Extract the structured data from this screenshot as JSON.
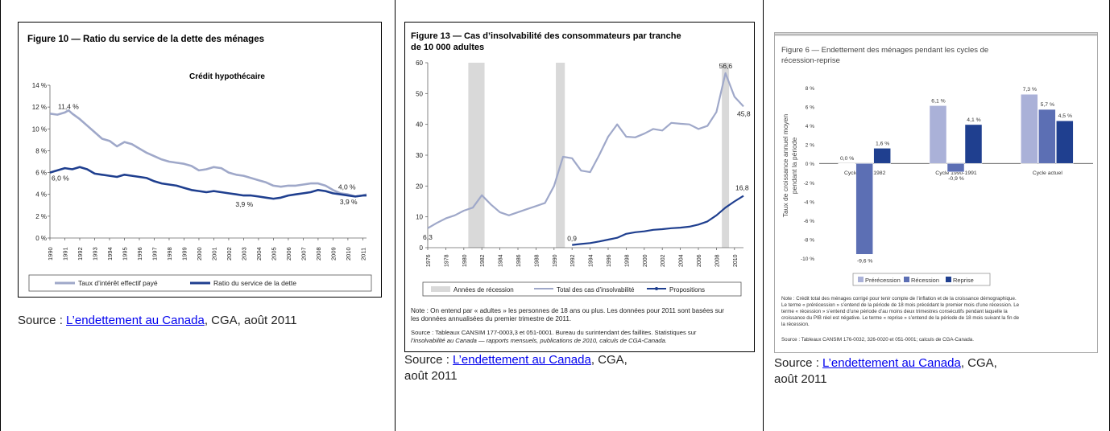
{
  "source": {
    "prefix": "Source : ",
    "link_text": "L’endettement au Canada",
    "suffix_wide": ", CGA, août 2011",
    "suffix_line1": ", CGA,",
    "suffix_line2": "août 2011"
  },
  "chart_data": [
    {
      "type": "line",
      "title": "Figure 10 — Ratio du service de la dette des ménages",
      "subtitle": "Crédit hypothécaire",
      "xlim": [
        1990,
        2011.25
      ],
      "ylim": [
        0,
        14
      ],
      "y_ticks": [
        "0 %",
        "2 %",
        "4 %",
        "6 %",
        "8 %",
        "10 %",
        "12 %",
        "14 %"
      ],
      "x_ticks": [
        "1990",
        "1991",
        "1992",
        "1993",
        "1994",
        "1995",
        "1996",
        "1997",
        "1998",
        "1999",
        "2000",
        "2001",
        "2002",
        "2003",
        "2004",
        "2005",
        "2006",
        "2007",
        "2008",
        "2009",
        "2010",
        "2011"
      ],
      "grid": false,
      "legend_position": "bottom",
      "series": [
        {
          "name": "Taux d’intérêt effectif payé",
          "color": "#9fa8c9",
          "x": [
            1990,
            1990.5,
            1991,
            1991.25,
            1991.5,
            1992,
            1992.5,
            1993,
            1993.5,
            1994,
            1994.5,
            1995,
            1995.5,
            1996,
            1996.5,
            1997,
            1997.5,
            1998,
            1998.5,
            1999,
            1999.5,
            2000,
            2000.5,
            2001,
            2001.5,
            2002,
            2002.5,
            2003,
            2003.5,
            2004,
            2004.5,
            2005,
            2005.5,
            2006,
            2006.5,
            2007,
            2007.5,
            2008,
            2008.5,
            2009,
            2009.5,
            2010,
            2010.5,
            2011,
            2011.25
          ],
          "y": [
            11.4,
            11.3,
            11.5,
            11.7,
            11.4,
            10.9,
            10.3,
            9.7,
            9.1,
            8.9,
            8.4,
            8.8,
            8.6,
            8.2,
            7.8,
            7.5,
            7.2,
            7.0,
            6.9,
            6.8,
            6.6,
            6.2,
            6.3,
            6.5,
            6.4,
            6.0,
            5.8,
            5.7,
            5.5,
            5.3,
            5.1,
            4.8,
            4.7,
            4.8,
            4.8,
            4.9,
            5.0,
            5.0,
            4.8,
            4.4,
            4.1,
            4.0,
            3.8,
            3.9,
            4.0
          ]
        },
        {
          "name": "Ratio du service de la dette",
          "color": "#1f3f8f",
          "x": [
            1990,
            1990.5,
            1991,
            1991.5,
            1992,
            1992.5,
            1993,
            1993.5,
            1994,
            1994.5,
            1995,
            1995.5,
            1996,
            1996.5,
            1997,
            1997.5,
            1998,
            1998.5,
            1999,
            1999.5,
            2000,
            2000.5,
            2001,
            2001.5,
            2002,
            2002.5,
            2003,
            2003.5,
            2004,
            2004.5,
            2005,
            2005.5,
            2006,
            2006.5,
            2007,
            2007.5,
            2008,
            2008.5,
            2009,
            2009.5,
            2010,
            2010.5,
            2011,
            2011.25
          ],
          "y": [
            6.0,
            6.2,
            6.4,
            6.3,
            6.5,
            6.3,
            5.9,
            5.8,
            5.7,
            5.6,
            5.8,
            5.7,
            5.6,
            5.5,
            5.2,
            5.0,
            4.9,
            4.8,
            4.6,
            4.4,
            4.3,
            4.2,
            4.3,
            4.2,
            4.1,
            4.0,
            3.9,
            3.9,
            3.8,
            3.7,
            3.6,
            3.7,
            3.9,
            4.0,
            4.1,
            4.2,
            4.4,
            4.3,
            4.1,
            4.0,
            3.9,
            3.8,
            3.9,
            3.9
          ]
        }
      ],
      "annotations": [
        {
          "text": "11,4 %",
          "x": 1990,
          "y": 11.4
        },
        {
          "text": "6,0 %",
          "x": 1990,
          "y": 6.0
        },
        {
          "text": "3,9 %",
          "x": 2003,
          "y": 3.9
        },
        {
          "text": "4,0 %",
          "x": 2010,
          "y": 4.0
        },
        {
          "text": "3,9 %",
          "x": 2010,
          "y": 3.9
        }
      ]
    },
    {
      "type": "line",
      "title_line1": "Figure 13 — Cas d’insolvabilité des consommateurs par tranche",
      "title_line2": "de 10 000 adultes",
      "xlim": [
        1976,
        2011
      ],
      "ylim": [
        0,
        60
      ],
      "y_ticks": [
        "0",
        "10",
        "20",
        "30",
        "40",
        "50",
        "60"
      ],
      "x_ticks": [
        "1976",
        "1978",
        "1980",
        "1982",
        "1984",
        "1986",
        "1988",
        "1990",
        "1992",
        "1994",
        "1996",
        "1998",
        "2000",
        "2002",
        "2004",
        "2006",
        "2008",
        "2010"
      ],
      "recession_bands": [
        [
          1980.5,
          1982.3
        ],
        [
          1990.2,
          1991.2
        ],
        [
          2008.6,
          2009.4
        ]
      ],
      "grid": false,
      "legend_position": "bottom",
      "legend": [
        "Années de récession",
        "Total des cas d’insolvabilité",
        "Propositions"
      ],
      "series": [
        {
          "name": "Total des cas d’insolvabilité",
          "color": "#9fa8c9",
          "x": [
            1976,
            1977,
            1978,
            1979,
            1980,
            1981,
            1982,
            1983,
            1984,
            1985,
            1986,
            1987,
            1988,
            1989,
            1990,
            1991,
            1992,
            1993,
            1994,
            1995,
            1996,
            1997,
            1998,
            1999,
            2000,
            2001,
            2002,
            2003,
            2004,
            2005,
            2006,
            2007,
            2008,
            2009,
            2010,
            2011
          ],
          "y": [
            6.3,
            8.0,
            9.5,
            10.5,
            12.0,
            13.0,
            17.0,
            14.0,
            11.5,
            10.5,
            11.5,
            12.5,
            13.5,
            14.5,
            20.0,
            29.5,
            29.0,
            25.0,
            24.5,
            30.0,
            36.0,
            40.0,
            36.0,
            35.8,
            37.0,
            38.5,
            38.0,
            40.5,
            40.2,
            40.0,
            38.5,
            39.5,
            44.0,
            56.6,
            49.0,
            45.8
          ]
        },
        {
          "name": "Propositions",
          "color": "#1f3f8f",
          "x": [
            1992,
            1993,
            1994,
            1995,
            1996,
            1997,
            1998,
            1999,
            2000,
            2001,
            2002,
            2003,
            2004,
            2005,
            2006,
            2007,
            2008,
            2009,
            2010,
            2011
          ],
          "y": [
            0.9,
            1.2,
            1.5,
            2.0,
            2.6,
            3.2,
            4.5,
            5.0,
            5.3,
            5.8,
            6.0,
            6.3,
            6.5,
            6.8,
            7.5,
            8.5,
            10.5,
            13.0,
            15.0,
            16.8
          ]
        }
      ],
      "annotations": [
        {
          "text": "6,3",
          "x": 1976,
          "y": 6.3
        },
        {
          "text": "0,9",
          "x": 1992,
          "y": 0.9
        },
        {
          "text": "56,6",
          "x": 2009,
          "y": 56.6
        },
        {
          "text": "45,8",
          "x": 2011,
          "y": 45.8
        },
        {
          "text": "16,8",
          "x": 2011,
          "y": 16.8
        }
      ],
      "note_lines": [
        "Note : On entend par « adultes » les personnes de 18 ans ou plus. Les données pour 2011 sont basées sur",
        "les données annualisées du premier trimestre de 2011."
      ],
      "source_lines": [
        "Source : Tableaux CANSIM 177-0003,3 et 051-0001. Bureau du surintendant des faillites. Statistiques sur",
        "l’insolvabilité au Canada — rapports mensuels, publications de 2010, calculs de CGA-Canada."
      ]
    },
    {
      "type": "bar",
      "title_line1": "Figure 6 — Endettement des ménages pendant les cycles de",
      "title_line2": "récession-reprise",
      "ylabel_line1": "Taux de croissance annuel moyen",
      "ylabel_line2": "pendant la période",
      "ylim": [
        -10,
        8
      ],
      "y_ticks": [
        "8 %",
        "6 %",
        "4 %",
        "2 %",
        "0 %",
        "-2 %",
        "-4 %",
        "-6 %",
        "-8 %",
        "-10 %"
      ],
      "categories": [
        "Cycle 1981-1982",
        "Cycle 1990-1991",
        "Cycle actuel"
      ],
      "grid": false,
      "legend_position": "bottom",
      "series": [
        {
          "name": "Prérécession",
          "color": "#aab1d8",
          "values": [
            0.0,
            6.1,
            7.3
          ],
          "labels": [
            "0,0 %",
            "6,1 %",
            "7,3 %"
          ]
        },
        {
          "name": "Récession",
          "color": "#5c6fb4",
          "values": [
            -9.6,
            -0.9,
            5.7
          ],
          "labels": [
            "-9,6 %",
            "-0,9 %",
            "5,7 %"
          ]
        },
        {
          "name": "Reprise",
          "color": "#1f3f8f",
          "values": [
            1.6,
            4.1,
            4.5
          ],
          "labels": [
            "1,6 %",
            "4,1 %",
            "4,5 %"
          ]
        }
      ],
      "note_lines": [
        "Note : Crédit total des ménages corrigé pour tenir compte de l’inflation et de la croissance démographique.",
        "Le terme « prérécession » s’entend de la période de 18 mois précédant le premier mois d’une récession. Le",
        "terme « récession » s’entend d’une période d’au moins deux trimestres consécutifs pendant laquelle la",
        "croissance du PIB réel est négative. Le terme « reprise » s’entend de la période de 18 mois suivant la fin de",
        "la récession."
      ],
      "source_line": "Source : Tableaux CANSIM 176-0032, 326-0020 et 051-0001; calculs de CGA-Canada."
    }
  ]
}
